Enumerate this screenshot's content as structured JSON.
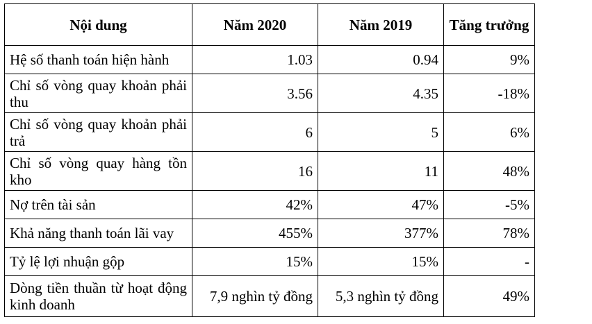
{
  "table": {
    "headers": [
      "Nội dung",
      "Năm 2020",
      "Năm 2019",
      "Tăng trưởng"
    ],
    "rows": [
      {
        "label": "Hệ số thanh toán hiện hành",
        "y2020": "1.03",
        "y2019": "0.94",
        "growth": "9%"
      },
      {
        "label": "Chỉ số vòng quay khoản phải thu",
        "y2020": "3.56",
        "y2019": "4.35",
        "growth": "-18%"
      },
      {
        "label": "Chỉ số vòng quay khoản phải trả",
        "y2020": "6",
        "y2019": "5",
        "growth": "6%"
      },
      {
        "label": "Chỉ số vòng quay hàng tồn kho",
        "y2020": "16",
        "y2019": "11",
        "growth": "48%"
      },
      {
        "label": "Nợ trên tài sản",
        "y2020": "42%",
        "y2019": "47%",
        "growth": "-5%"
      },
      {
        "label": "Khả năng thanh toán lãi vay",
        "y2020": "455%",
        "y2019": "377%",
        "growth": "78%"
      },
      {
        "label": "Tỷ lệ lợi nhuận gộp",
        "y2020": "15%",
        "y2019": "15%",
        "growth": "-"
      },
      {
        "label": "Dòng tiền thuần từ hoạt động kinh doanh",
        "y2020": "7,9 nghìn tỷ đồng",
        "y2019": "5,3 nghìn tỷ đồng",
        "growth": "49%"
      }
    ]
  }
}
